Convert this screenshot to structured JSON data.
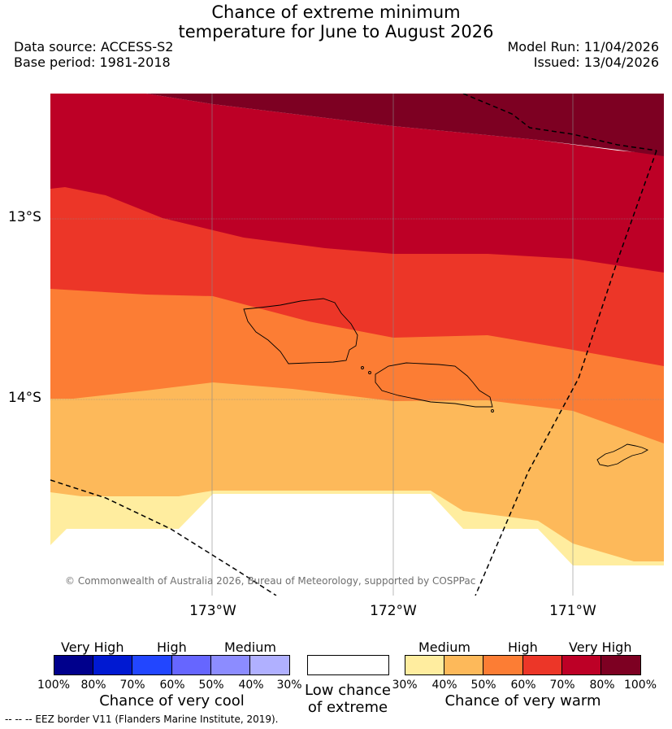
{
  "title_line1": "Chance of extreme minimum",
  "title_line2": "temperature for June to August 2026",
  "data_source": "Data source: ACCESS-S2",
  "base_period": "Base period: 1981-2018",
  "model_run": "Model Run: 11/04/2026",
  "issued": "Issued: 13/04/2026",
  "lat_labels": [
    "13°S",
    "14°S"
  ],
  "lon_labels": [
    "173°W",
    "172°W",
    "171°W"
  ],
  "copyright": "© Commonwealth of Australia 2026, Bureau of Meteorology, supported by COSPPac",
  "colors": {
    "very_high_100": "#7d0022",
    "very_high_80": "#bd0026",
    "high_70": "#ec3628",
    "high_60": "#fc7d34",
    "medium_50": "#fdb95a",
    "medium_40": "#ffed9f",
    "low": "#ffffff",
    "cool_100": "#00008c",
    "cool_80": "#0019d2",
    "cool_70": "#2246ff",
    "cool_60": "#6666ff",
    "cool_50": "#8c8cff",
    "cool_40": "#b0b0ff"
  },
  "legend": {
    "cool": {
      "headers": [
        "Very High",
        "High",
        "Medium"
      ],
      "ticks": [
        "100%",
        "80%",
        "70%",
        "60%",
        "50%",
        "40%",
        "30%"
      ],
      "caption": "Chance of very cool"
    },
    "low": {
      "caption_line1": "Low chance",
      "caption_line2": "of extreme"
    },
    "warm": {
      "headers": [
        "Medium",
        "High",
        "Very High"
      ],
      "ticks": [
        "30%",
        "40%",
        "50%",
        "60%",
        "70%",
        "80%",
        "100%"
      ],
      "caption": "Chance of very warm"
    }
  },
  "footnote": "--  --  -- EEZ border V11 (Flanders Marine Institute, 2019)."
}
